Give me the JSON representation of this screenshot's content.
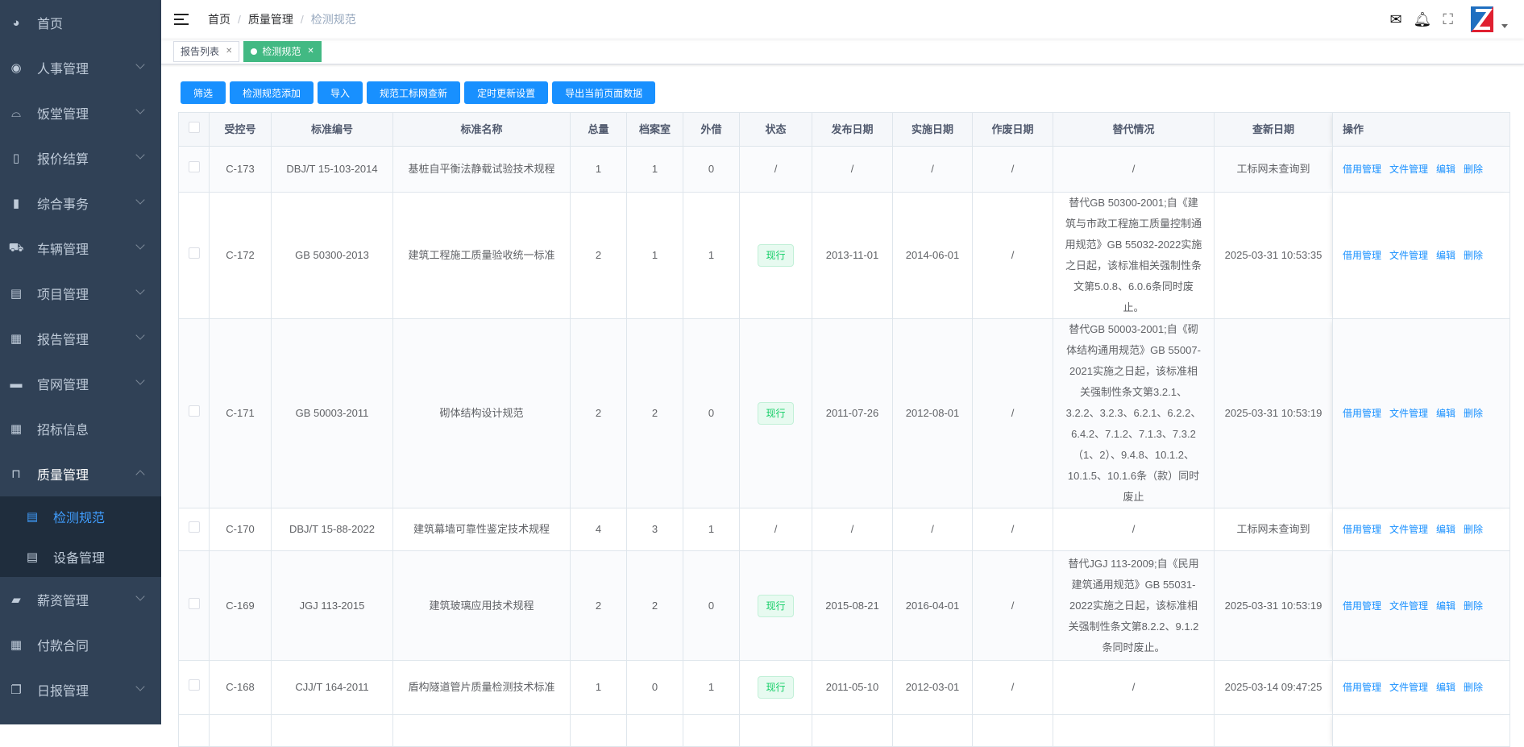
{
  "sidebar": {
    "items": [
      {
        "label": "首页",
        "icon": "dashboard-icon",
        "chevron": false
      },
      {
        "label": "人事管理",
        "icon": "lifebuoy-icon",
        "chevron": true
      },
      {
        "label": "饭堂管理",
        "icon": "bell-dish-icon",
        "chevron": true
      },
      {
        "label": "报价结算",
        "icon": "book-icon",
        "chevron": true
      },
      {
        "label": "综合事务",
        "icon": "library-icon",
        "chevron": true
      },
      {
        "label": "车辆管理",
        "icon": "truck-icon",
        "chevron": true
      },
      {
        "label": "项目管理",
        "icon": "document-icon",
        "chevron": true
      },
      {
        "label": "报告管理",
        "icon": "clipboard-icon",
        "chevron": true
      },
      {
        "label": "官网管理",
        "icon": "monitor-icon",
        "chevron": true
      },
      {
        "label": "招标信息",
        "icon": "clipboard-icon",
        "chevron": false
      },
      {
        "label": "质量管理",
        "icon": "shopping-bag-icon",
        "chevron": true,
        "open": true
      }
    ],
    "submenu": [
      {
        "label": "检测规范",
        "active": true
      },
      {
        "label": "设备管理"
      }
    ],
    "items_after": [
      {
        "label": "薪资管理",
        "icon": "wallet-icon",
        "chevron": true
      },
      {
        "label": "付款合同",
        "icon": "clipboard-icon",
        "chevron": false
      },
      {
        "label": "日报管理",
        "icon": "copy-icon",
        "chevron": true
      }
    ]
  },
  "header": {
    "breadcrumb": [
      "首页",
      "质量管理",
      "检测规范"
    ]
  },
  "tabs": [
    {
      "label": "报告列表",
      "active": false
    },
    {
      "label": "检测规范",
      "active": true
    }
  ],
  "toolbar": [
    "筛选",
    "检测规范添加",
    "导入",
    "规范工标网查新",
    "定时更新设置",
    "导出当前页面数据"
  ],
  "table": {
    "columns": [
      "",
      "受控号",
      "标准编号",
      "标准名称",
      "总量",
      "档案室",
      "外借",
      "状态",
      "发布日期",
      "实施日期",
      "作废日期",
      "替代情况",
      "查新日期",
      "操作"
    ],
    "actions": [
      "借用管理",
      "文件管理",
      "编辑",
      "删除"
    ],
    "rows": [
      {
        "id": "C-173",
        "code": "DBJ/T 15-103-2014",
        "name": "基桩自平衡法静载试验技术规程",
        "total": "1",
        "archive": "1",
        "lent": "0",
        "status": "/",
        "publish": "/",
        "implement": "/",
        "void": "/",
        "replace": "/",
        "check": "工标网未查询到"
      },
      {
        "id": "C-172",
        "code": "GB 50300-2013",
        "name": "建筑工程施工质量验收统一标准",
        "total": "2",
        "archive": "1",
        "lent": "1",
        "status": "现行",
        "publish": "2013-11-01",
        "implement": "2014-06-01",
        "void": "/",
        "replace": "替代GB 50300-2001;自《建筑与市政工程施工质量控制通用规范》GB 55032-2022实施之日起，该标准相关强制性条文第5.0.8、6.0.6条同时废止。",
        "check": "2025-03-31 10:53:35"
      },
      {
        "id": "C-171",
        "code": "GB 50003-2011",
        "name": "砌体结构设计规范",
        "total": "2",
        "archive": "2",
        "lent": "0",
        "status": "现行",
        "publish": "2011-07-26",
        "implement": "2012-08-01",
        "void": "/",
        "replace": "替代GB 50003-2001;自《砌体结构通用规范》GB 55007-2021实施之日起，该标准相关强制性条文第3.2.1、3.2.2、3.2.3、6.2.1、6.2.2、6.4.2、7.1.2、7.1.3、7.3.2（1、2）、9.4.8、10.1.2、10.1.5、10.1.6条（款）同时废止",
        "check": "2025-03-31 10:53:19"
      },
      {
        "id": "C-170",
        "code": "DBJ/T 15-88-2022",
        "name": "建筑幕墙可靠性鉴定技术规程",
        "total": "4",
        "archive": "3",
        "lent": "1",
        "status": "/",
        "publish": "/",
        "implement": "/",
        "void": "/",
        "replace": "/",
        "check": "工标网未查询到"
      },
      {
        "id": "C-169",
        "code": "JGJ 113-2015",
        "name": "建筑玻璃应用技术规程",
        "total": "2",
        "archive": "2",
        "lent": "0",
        "status": "现行",
        "publish": "2015-08-21",
        "implement": "2016-04-01",
        "void": "/",
        "replace": "替代JGJ 113-2009;自《民用建筑通用规范》GB 55031-2022实施之日起，该标准相关强制性条文第8.2.2、9.1.2条同时废止。",
        "check": "2025-03-31 10:53:19"
      },
      {
        "id": "C-168",
        "code": "CJJ/T 164-2011",
        "name": "盾构隧道管片质量检测技术标准",
        "total": "1",
        "archive": "0",
        "lent": "1",
        "status": "现行",
        "publish": "2011-05-10",
        "implement": "2012-03-01",
        "void": "/",
        "replace": "/",
        "check": "2025-03-14 09:47:25"
      }
    ]
  },
  "colors": {
    "sidebar": "#304156",
    "submenu": "#1f2d3d",
    "accent": "#1890ff",
    "tag_active": "#42b983",
    "status_current": "#13ce66"
  }
}
